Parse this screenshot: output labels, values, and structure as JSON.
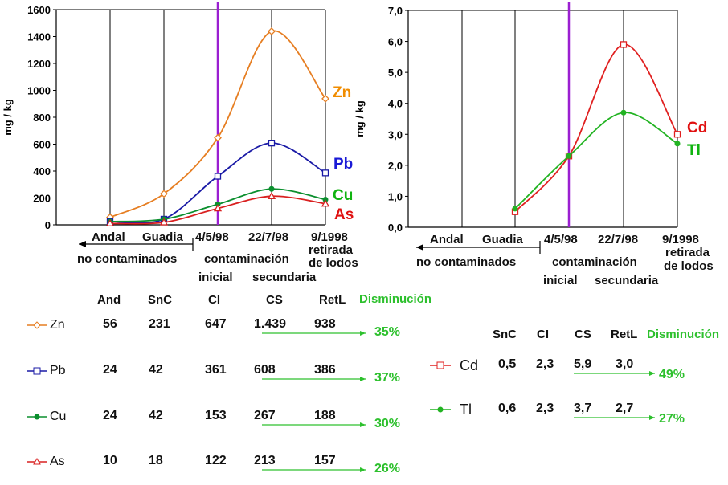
{
  "chart_data": [
    {
      "type": "line",
      "ylabel": "mg / kg",
      "ylim": [
        0,
        1600
      ],
      "yticks": [
        "0",
        "200",
        "400",
        "600",
        "800",
        "1000",
        "1200",
        "1400",
        "1600"
      ],
      "categories": [
        "Andal",
        "Guadia",
        "4/5/98",
        "22/7/98",
        "9/1998"
      ],
      "grid": "vertical",
      "series": [
        {
          "name": "Zn",
          "color": "#e67e22",
          "values": [
            56,
            231,
            647,
            1439,
            938
          ]
        },
        {
          "name": "Pb",
          "color": "#1a1aa6",
          "values": [
            24,
            42,
            361,
            608,
            386
          ]
        },
        {
          "name": "Cu",
          "color": "#0b8f2e",
          "values": [
            24,
            42,
            153,
            267,
            188
          ]
        },
        {
          "name": "As",
          "color": "#d92020",
          "values": [
            10,
            18,
            122,
            213,
            157
          ]
        }
      ]
    },
    {
      "type": "line",
      "ylabel": "mg / kg",
      "ylim": [
        0,
        7
      ],
      "yticks": [
        "0,0",
        "1,0",
        "2,0",
        "3,0",
        "4,0",
        "5,0",
        "6,0",
        "7,0"
      ],
      "categories": [
        "Andal",
        "Guadia",
        "4/5/98",
        "22/7/98",
        "9/1998"
      ],
      "grid": "vertical",
      "series": [
        {
          "name": "Cd",
          "color": "#e02020",
          "values": [
            null,
            0.5,
            2.3,
            5.9,
            3.0
          ]
        },
        {
          "name": "Tl",
          "color": "#22b322",
          "values": [
            null,
            0.6,
            2.3,
            3.7,
            2.7
          ]
        }
      ]
    }
  ],
  "axis_labels": {
    "andal": "Andal",
    "guadia": "Guadia",
    "cat3": "4/5/98",
    "cat4": "22/7/98",
    "cat5": "9/1998",
    "retirada": "retirada",
    "de_lodos": "de lodos",
    "no_contaminados": "no contaminados",
    "contaminacion": "contaminación",
    "inicial": "inicial",
    "secundaria": "secundaria"
  },
  "table_left": {
    "headers": [
      "And",
      "SnC",
      "CI",
      "CS",
      "RetL"
    ],
    "disminucion": "Disminución",
    "rows": [
      {
        "name": "Zn",
        "values": [
          "56",
          "231",
          "647",
          "1.439",
          "938"
        ],
        "pct": "35%"
      },
      {
        "name": "Pb",
        "values": [
          "24",
          "42",
          "361",
          "608",
          "386"
        ],
        "pct": "37%"
      },
      {
        "name": "Cu",
        "values": [
          "24",
          "42",
          "153",
          "267",
          "188"
        ],
        "pct": "30%"
      },
      {
        "name": "As",
        "values": [
          "10",
          "18",
          "122",
          "213",
          "157"
        ],
        "pct": "26%"
      }
    ]
  },
  "table_right": {
    "headers": [
      "SnC",
      "CI",
      "CS",
      "RetL"
    ],
    "disminucion": "Disminución",
    "rows": [
      {
        "name": "Cd",
        "values": [
          "0,5",
          "2,3",
          "5,9",
          "3,0"
        ],
        "pct": "49%"
      },
      {
        "name": "Tl",
        "values": [
          "0,6",
          "2,3",
          "3,7",
          "2,7"
        ],
        "pct": "27%"
      }
    ]
  }
}
